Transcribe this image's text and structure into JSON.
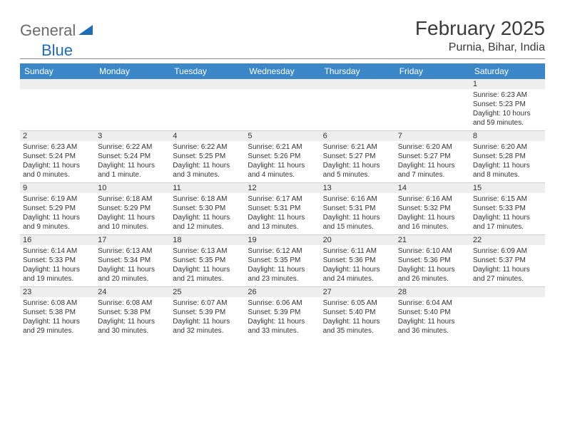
{
  "logo": {
    "gray": "General",
    "blue": "Blue"
  },
  "title": "February 2025",
  "subtitle": "Purnia, Bihar, India",
  "colors": {
    "header_bar": "#3b87c8",
    "header_text": "#ffffff",
    "num_strip_bg": "#eeeeee",
    "divider": "#8a8a8a",
    "text": "#333333",
    "logo_gray": "#6b6b6b",
    "logo_blue": "#1f6db5"
  },
  "dow": [
    "Sunday",
    "Monday",
    "Tuesday",
    "Wednesday",
    "Thursday",
    "Friday",
    "Saturday"
  ],
  "weeks": [
    [
      null,
      null,
      null,
      null,
      null,
      null,
      {
        "n": "1",
        "sr": "6:23 AM",
        "ss": "5:23 PM",
        "dl": "10 hours and 59 minutes."
      }
    ],
    [
      {
        "n": "2",
        "sr": "6:23 AM",
        "ss": "5:24 PM",
        "dl": "11 hours and 0 minutes."
      },
      {
        "n": "3",
        "sr": "6:22 AM",
        "ss": "5:24 PM",
        "dl": "11 hours and 1 minute."
      },
      {
        "n": "4",
        "sr": "6:22 AM",
        "ss": "5:25 PM",
        "dl": "11 hours and 3 minutes."
      },
      {
        "n": "5",
        "sr": "6:21 AM",
        "ss": "5:26 PM",
        "dl": "11 hours and 4 minutes."
      },
      {
        "n": "6",
        "sr": "6:21 AM",
        "ss": "5:27 PM",
        "dl": "11 hours and 5 minutes."
      },
      {
        "n": "7",
        "sr": "6:20 AM",
        "ss": "5:27 PM",
        "dl": "11 hours and 7 minutes."
      },
      {
        "n": "8",
        "sr": "6:20 AM",
        "ss": "5:28 PM",
        "dl": "11 hours and 8 minutes."
      }
    ],
    [
      {
        "n": "9",
        "sr": "6:19 AM",
        "ss": "5:29 PM",
        "dl": "11 hours and 9 minutes."
      },
      {
        "n": "10",
        "sr": "6:18 AM",
        "ss": "5:29 PM",
        "dl": "11 hours and 10 minutes."
      },
      {
        "n": "11",
        "sr": "6:18 AM",
        "ss": "5:30 PM",
        "dl": "11 hours and 12 minutes."
      },
      {
        "n": "12",
        "sr": "6:17 AM",
        "ss": "5:31 PM",
        "dl": "11 hours and 13 minutes."
      },
      {
        "n": "13",
        "sr": "6:16 AM",
        "ss": "5:31 PM",
        "dl": "11 hours and 15 minutes."
      },
      {
        "n": "14",
        "sr": "6:16 AM",
        "ss": "5:32 PM",
        "dl": "11 hours and 16 minutes."
      },
      {
        "n": "15",
        "sr": "6:15 AM",
        "ss": "5:33 PM",
        "dl": "11 hours and 17 minutes."
      }
    ],
    [
      {
        "n": "16",
        "sr": "6:14 AM",
        "ss": "5:33 PM",
        "dl": "11 hours and 19 minutes."
      },
      {
        "n": "17",
        "sr": "6:13 AM",
        "ss": "5:34 PM",
        "dl": "11 hours and 20 minutes."
      },
      {
        "n": "18",
        "sr": "6:13 AM",
        "ss": "5:35 PM",
        "dl": "11 hours and 21 minutes."
      },
      {
        "n": "19",
        "sr": "6:12 AM",
        "ss": "5:35 PM",
        "dl": "11 hours and 23 minutes."
      },
      {
        "n": "20",
        "sr": "6:11 AM",
        "ss": "5:36 PM",
        "dl": "11 hours and 24 minutes."
      },
      {
        "n": "21",
        "sr": "6:10 AM",
        "ss": "5:36 PM",
        "dl": "11 hours and 26 minutes."
      },
      {
        "n": "22",
        "sr": "6:09 AM",
        "ss": "5:37 PM",
        "dl": "11 hours and 27 minutes."
      }
    ],
    [
      {
        "n": "23",
        "sr": "6:08 AM",
        "ss": "5:38 PM",
        "dl": "11 hours and 29 minutes."
      },
      {
        "n": "24",
        "sr": "6:08 AM",
        "ss": "5:38 PM",
        "dl": "11 hours and 30 minutes."
      },
      {
        "n": "25",
        "sr": "6:07 AM",
        "ss": "5:39 PM",
        "dl": "11 hours and 32 minutes."
      },
      {
        "n": "26",
        "sr": "6:06 AM",
        "ss": "5:39 PM",
        "dl": "11 hours and 33 minutes."
      },
      {
        "n": "27",
        "sr": "6:05 AM",
        "ss": "5:40 PM",
        "dl": "11 hours and 35 minutes."
      },
      {
        "n": "28",
        "sr": "6:04 AM",
        "ss": "5:40 PM",
        "dl": "11 hours and 36 minutes."
      },
      null
    ]
  ],
  "labels": {
    "sunrise": "Sunrise:",
    "sunset": "Sunset:",
    "daylight": "Daylight:"
  }
}
